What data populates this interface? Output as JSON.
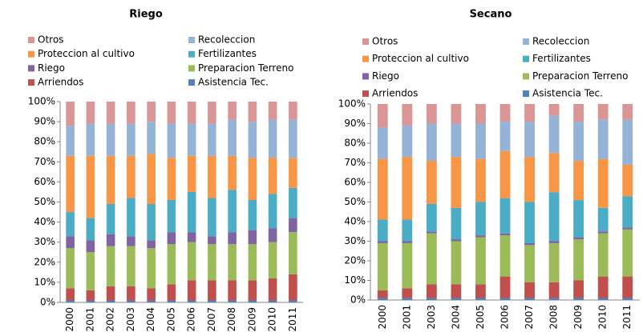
{
  "chart_data": [
    {
      "type": "stacked_bar",
      "title": "Riego",
      "categories": [
        "2000",
        "2001",
        "2002",
        "2003",
        "2004",
        "2005",
        "2006",
        "2007",
        "2008",
        "2009",
        "2010",
        "2011"
      ],
      "ylim": [
        0,
        100
      ],
      "yticks": [
        {
          "value": 0,
          "label": "0%"
        },
        {
          "value": 10,
          "label": "10%"
        },
        {
          "value": 20,
          "label": "20%"
        },
        {
          "value": 30,
          "label": "30%"
        },
        {
          "value": 40,
          "label": "40%"
        },
        {
          "value": 50,
          "label": "50%"
        },
        {
          "value": 60,
          "label": "60%"
        },
        {
          "value": 70,
          "label": "70%"
        },
        {
          "value": 80,
          "label": "80%"
        },
        {
          "value": 90,
          "label": "90%"
        },
        {
          "value": 100,
          "label": "100%"
        }
      ],
      "grid": false,
      "series": [
        {
          "name": "Asistencia Tec.",
          "color": "#4f81bd",
          "values": [
            1,
            1,
            1,
            1,
            1,
            1,
            1,
            1,
            1,
            1,
            1,
            1
          ]
        },
        {
          "name": "Arriendos",
          "color": "#c0504d",
          "values": [
            6,
            5,
            7,
            7,
            6,
            8,
            10,
            10,
            10,
            10,
            11,
            13
          ]
        },
        {
          "name": "Preparacion Terreno",
          "color": "#9bbb59",
          "values": [
            20,
            19,
            20,
            20,
            20,
            20,
            19,
            18,
            18,
            18,
            18,
            21
          ]
        },
        {
          "name": "Riego",
          "color": "#8064a2",
          "values": [
            6,
            6,
            6,
            5,
            4,
            6,
            5,
            4,
            6,
            7,
            7,
            7
          ]
        },
        {
          "name": "Fertilizantes",
          "color": "#4bacc6",
          "values": [
            12,
            11,
            15,
            19,
            18,
            16,
            20,
            19,
            21,
            15,
            17,
            15
          ]
        },
        {
          "name": "Proteccion al cultivo",
          "color": "#f79646",
          "values": [
            28,
            31,
            24,
            21,
            25,
            21,
            18,
            21,
            17,
            21,
            18,
            15
          ]
        },
        {
          "name": "Recoleccion",
          "color": "#95b3d7",
          "values": [
            15,
            16,
            16,
            16,
            16,
            17,
            16,
            16,
            18,
            18,
            19,
            19
          ]
        },
        {
          "name": "Otros",
          "color": "#d99694",
          "values": [
            12,
            11,
            11,
            11,
            10,
            11,
            11,
            11,
            9,
            10,
            9,
            9
          ]
        }
      ]
    },
    {
      "type": "stacked_bar",
      "title": "Secano",
      "categories": [
        "2000",
        "2001",
        "2003",
        "2004",
        "2005",
        "2006",
        "2007",
        "2008",
        "2009",
        "2010",
        "2011"
      ],
      "ylim": [
        0,
        100
      ],
      "yticks": [
        {
          "value": 0,
          "label": "0%"
        },
        {
          "value": 10,
          "label": "10%"
        },
        {
          "value": 20,
          "label": "20%"
        },
        {
          "value": 30,
          "label": "30%"
        },
        {
          "value": 40,
          "label": "40%"
        },
        {
          "value": 50,
          "label": "50%"
        },
        {
          "value": 60,
          "label": "60%"
        },
        {
          "value": 70,
          "label": "70%"
        },
        {
          "value": 80,
          "label": "80%"
        },
        {
          "value": 90,
          "label": "90%"
        },
        {
          "value": 100,
          "label": "100%"
        }
      ],
      "grid": false,
      "series": [
        {
          "name": "Asistencia Tec.",
          "color": "#4f81bd",
          "values": [
            1,
            1,
            1,
            1,
            1,
            1,
            1,
            1,
            1,
            1,
            1
          ]
        },
        {
          "name": "Arriendos",
          "color": "#c0504d",
          "values": [
            4,
            5,
            7,
            7,
            7,
            11,
            8,
            8,
            9,
            11,
            11
          ]
        },
        {
          "name": "Preparacion Terreno",
          "color": "#9bbb59",
          "values": [
            24,
            23,
            26,
            22,
            24,
            21,
            19,
            20,
            21,
            22,
            24
          ]
        },
        {
          "name": "Riego",
          "color": "#8064a2",
          "values": [
            1,
            1,
            1,
            1,
            1,
            1,
            1,
            1,
            1,
            1,
            1
          ]
        },
        {
          "name": "Fertilizantes",
          "color": "#4bacc6",
          "values": [
            11,
            11,
            14,
            16,
            17,
            18,
            21,
            25,
            19,
            12,
            16
          ]
        },
        {
          "name": "Proteccion al cultivo",
          "color": "#f79646",
          "values": [
            31,
            32,
            22,
            26,
            22,
            24,
            23,
            20,
            20,
            25,
            16
          ]
        },
        {
          "name": "Recoleccion",
          "color": "#95b3d7",
          "values": [
            16,
            16,
            19,
            17,
            18,
            15,
            18,
            19,
            20,
            20,
            23
          ]
        },
        {
          "name": "Otros",
          "color": "#d99694",
          "values": [
            12,
            11,
            10,
            10,
            10,
            9,
            9,
            6,
            9,
            8,
            8
          ]
        }
      ]
    }
  ]
}
